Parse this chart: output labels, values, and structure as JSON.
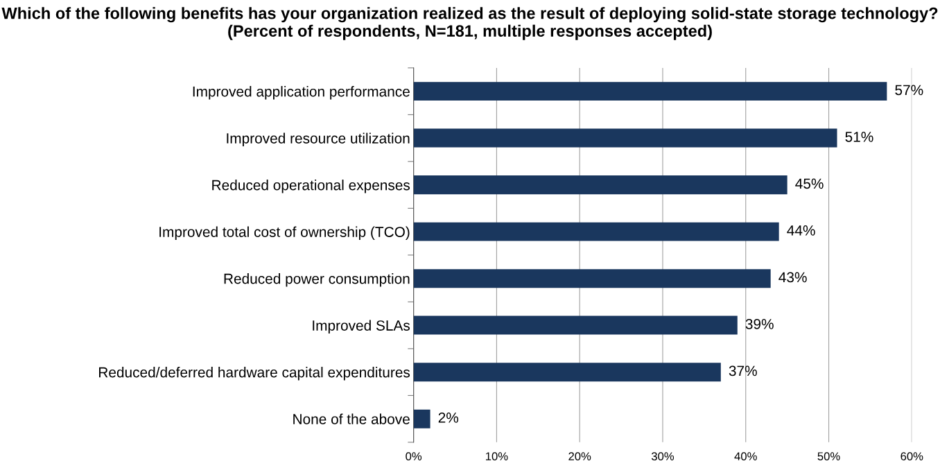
{
  "chart_data": {
    "type": "bar",
    "orientation": "horizontal",
    "title": "Which of the following benefits has your organization realized as the result of deploying solid-state storage technology? (Percent of respondents, N=181, multiple responses accepted)",
    "categories": [
      "Improved application performance",
      "Improved resource utilization",
      "Reduced operational expenses",
      "Improved total cost of ownership (TCO)",
      "Reduced power consumption",
      "Improved SLAs",
      "Reduced/deferred hardware capital expenditures",
      "None of the above"
    ],
    "values": [
      57,
      51,
      45,
      44,
      43,
      39,
      37,
      2
    ],
    "value_labels": [
      "57%",
      "51%",
      "45%",
      "44%",
      "43%",
      "39%",
      "37%",
      "2%"
    ],
    "color": "#1a375e",
    "xlim": [
      0,
      60
    ],
    "xticks": [
      {
        "value": 0,
        "label": "0%"
      },
      {
        "value": 10,
        "label": "10%"
      },
      {
        "value": 20,
        "label": "20%"
      },
      {
        "value": 30,
        "label": "30%"
      },
      {
        "value": 40,
        "label": "40%"
      },
      {
        "value": 50,
        "label": "50%"
      },
      {
        "value": 60,
        "label": "60%"
      }
    ],
    "grid": "x"
  }
}
